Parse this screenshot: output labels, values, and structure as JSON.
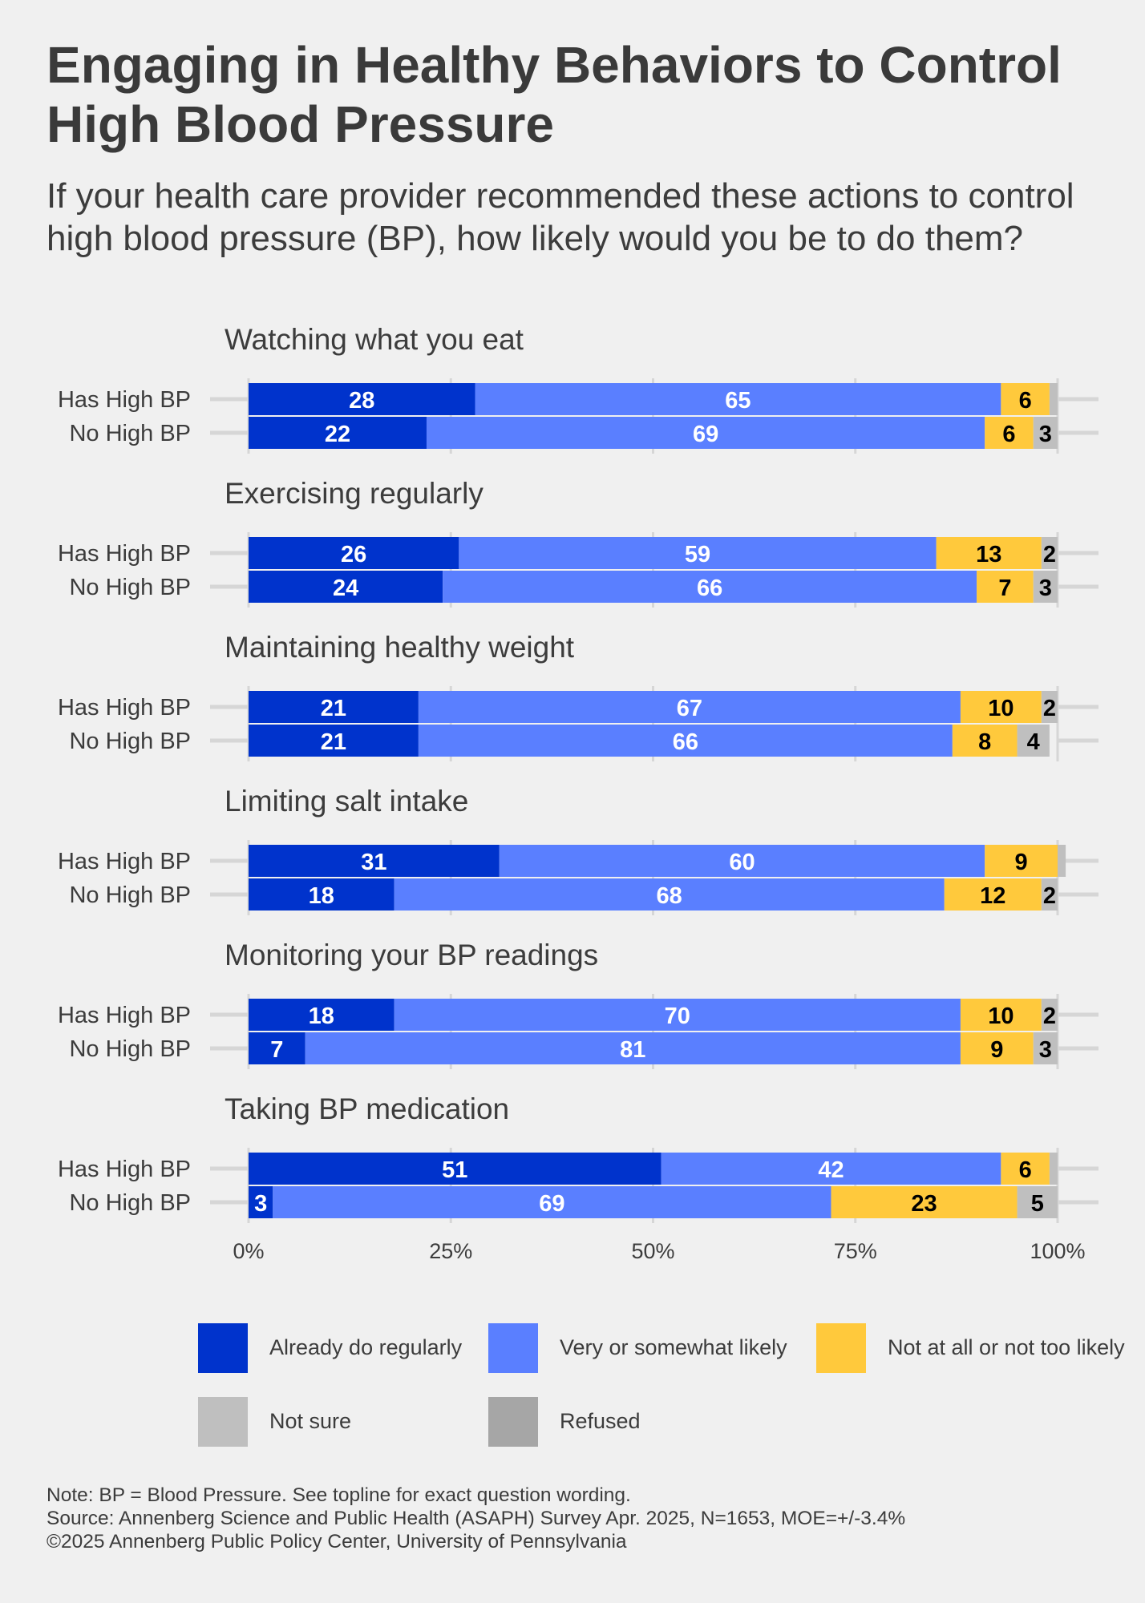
{
  "title": "Engaging in Healthy Behaviors to Control High Blood Pressure",
  "subtitle": "If your health care provider recommended these actions to control high blood pressure (BP), how likely would you be to do them?",
  "colors": {
    "already": "#0033cc",
    "likely": "#5a7fff",
    "not_likely": "#ffc93c",
    "not_sure": "#bfbfbf",
    "refused": "#a6a6a6",
    "background": "#f0f0f0"
  },
  "legend": [
    {
      "label": "Already do regularly",
      "key": "already"
    },
    {
      "label": "Very or somewhat likely",
      "key": "likely"
    },
    {
      "label": "Not at all or not too likely",
      "key": "not_likely"
    },
    {
      "label": "Not sure",
      "key": "not_sure"
    },
    {
      "label": "Refused",
      "key": "refused"
    }
  ],
  "footer": {
    "note": "Note: BP = Blood Pressure. See topline for exact question wording.",
    "source": "Source: Annenberg Science and Public Health (ASAPH) Survey Apr. 2025, N=1653, MOE=+/-3.4%",
    "copyright": "©2025 Annenberg Public Policy Center, University of Pennsylvania"
  },
  "chart_data": {
    "type": "bar",
    "orientation": "horizontal-stacked",
    "title": "Engaging in Healthy Behaviors to Control High Blood Pressure",
    "xlabel": "",
    "ylabel": "",
    "xlim": [
      0,
      100
    ],
    "x_ticks": [
      "0%",
      "25%",
      "50%",
      "75%",
      "100%"
    ],
    "x_tick_values": [
      0,
      25,
      50,
      75,
      100
    ],
    "grid": true,
    "legend_position": "bottom",
    "series_names": [
      "Already do regularly",
      "Very or somewhat likely",
      "Not at all or not too likely",
      "Not sure",
      "Refused"
    ],
    "groups": [
      {
        "label": "Watching what you eat",
        "rows": [
          {
            "label": "Has High BP",
            "values": [
              28,
              65,
              6,
              1,
              0
            ],
            "labels": [
              "28",
              "65",
              "6",
              "",
              ""
            ]
          },
          {
            "label": "No High BP",
            "values": [
              22,
              69,
              6,
              3,
              0
            ],
            "labels": [
              "22",
              "69",
              "6",
              "3",
              ""
            ]
          }
        ]
      },
      {
        "label": "Exercising regularly",
        "rows": [
          {
            "label": "Has High BP",
            "values": [
              26,
              59,
              13,
              2,
              0
            ],
            "labels": [
              "26",
              "59",
              "13",
              "2",
              ""
            ]
          },
          {
            "label": "No High BP",
            "values": [
              24,
              66,
              7,
              3,
              0
            ],
            "labels": [
              "24",
              "66",
              "7",
              "3",
              ""
            ]
          }
        ]
      },
      {
        "label": "Maintaining healthy weight",
        "rows": [
          {
            "label": "Has High BP",
            "values": [
              21,
              67,
              10,
              2,
              0
            ],
            "labels": [
              "21",
              "67",
              "10",
              "2",
              ""
            ]
          },
          {
            "label": "No High BP",
            "values": [
              21,
              66,
              8,
              4,
              0
            ],
            "labels": [
              "21",
              "66",
              "8",
              "4",
              ""
            ]
          }
        ]
      },
      {
        "label": "Limiting salt intake",
        "rows": [
          {
            "label": "Has High BP",
            "values": [
              31,
              60,
              9,
              1,
              0
            ],
            "labels": [
              "31",
              "60",
              "9",
              "",
              ""
            ]
          },
          {
            "label": "No High BP",
            "values": [
              18,
              68,
              12,
              2,
              0
            ],
            "labels": [
              "18",
              "68",
              "12",
              "2",
              ""
            ]
          }
        ]
      },
      {
        "label": "Monitoring your BP readings",
        "rows": [
          {
            "label": "Has High BP",
            "values": [
              18,
              70,
              10,
              2,
              0
            ],
            "labels": [
              "18",
              "70",
              "10",
              "2",
              ""
            ]
          },
          {
            "label": "No High BP",
            "values": [
              7,
              81,
              9,
              3,
              0
            ],
            "labels": [
              "7",
              "81",
              "9",
              "3",
              ""
            ]
          }
        ]
      },
      {
        "label": "Taking BP medication",
        "rows": [
          {
            "label": "Has High BP",
            "values": [
              51,
              42,
              6,
              1,
              0
            ],
            "labels": [
              "51",
              "42",
              "6",
              "",
              ""
            ]
          },
          {
            "label": "No High BP",
            "values": [
              3,
              69,
              23,
              5,
              0
            ],
            "labels": [
              "3",
              "69",
              "23",
              "5",
              ""
            ]
          }
        ]
      }
    ]
  }
}
